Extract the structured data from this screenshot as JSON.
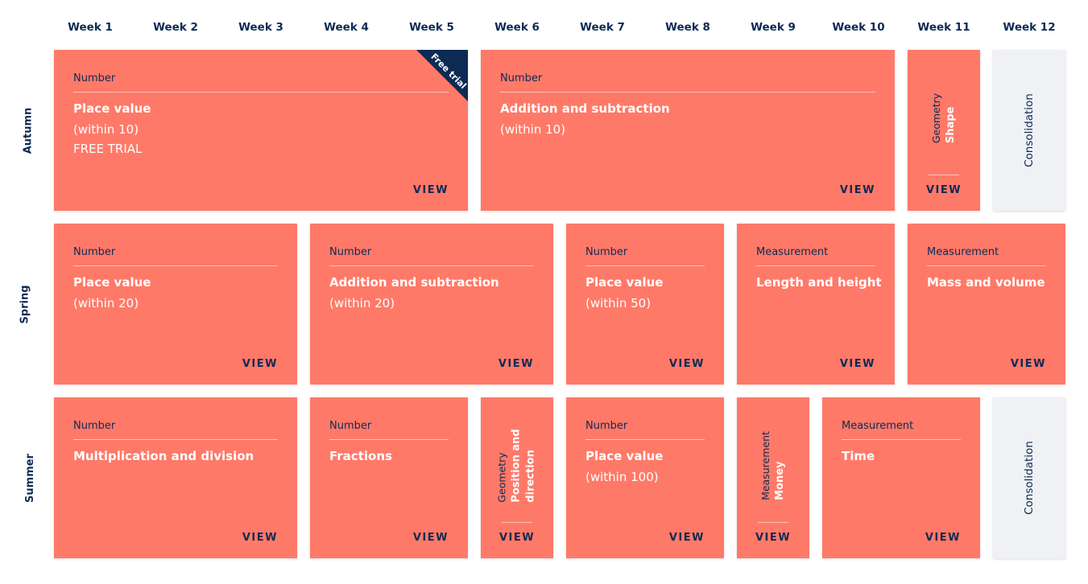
{
  "weeks": [
    "Week 1",
    "Week 2",
    "Week 3",
    "Week 4",
    "Week 5",
    "Week 6",
    "Week 7",
    "Week 8",
    "Week 9",
    "Week 10",
    "Week 11",
    "Week 12"
  ],
  "terms": {
    "autumn": "Autumn",
    "spring": "Spring",
    "summer": "Summer"
  },
  "view_label": "VIEW",
  "colors": {
    "card": "#ff7968",
    "grey_card": "#f0f1f4",
    "navy": "#0d2a55"
  },
  "autumn": {
    "place_value": {
      "category": "Number",
      "title": "Place value",
      "sub": "(within 10)",
      "sub2": "FREE TRIAL",
      "ribbon": "Free trial"
    },
    "add_sub": {
      "category": "Number",
      "title": "Addition and subtraction",
      "sub": "(within 10)"
    },
    "shape": {
      "category": "Geometry",
      "title": "Shape"
    },
    "consolidation": "Consolidation"
  },
  "spring": {
    "place_value": {
      "category": "Number",
      "title": "Place value",
      "sub": "(within 20)"
    },
    "add_sub": {
      "category": "Number",
      "title": "Addition and subtraction",
      "sub": "(within 20)"
    },
    "place_value_50": {
      "category": "Number",
      "title": "Place value",
      "sub": "(within 50)"
    },
    "length": {
      "category": "Measurement",
      "title": "Length and height"
    },
    "mass": {
      "category": "Measurement",
      "title": "Mass and volume"
    }
  },
  "summer": {
    "mult": {
      "category": "Number",
      "title": "Multiplication and division"
    },
    "fractions": {
      "category": "Number",
      "title": "Fractions"
    },
    "position": {
      "category": "Geometry",
      "title_line1": "Position and",
      "title_line2": "direction"
    },
    "place_value_100": {
      "category": "Number",
      "title": "Place value",
      "sub": "(within 100)"
    },
    "money": {
      "category": "Measurement",
      "title": "Money"
    },
    "time": {
      "category": "Measurement",
      "title": "Time"
    },
    "consolidation": "Consolidation"
  }
}
